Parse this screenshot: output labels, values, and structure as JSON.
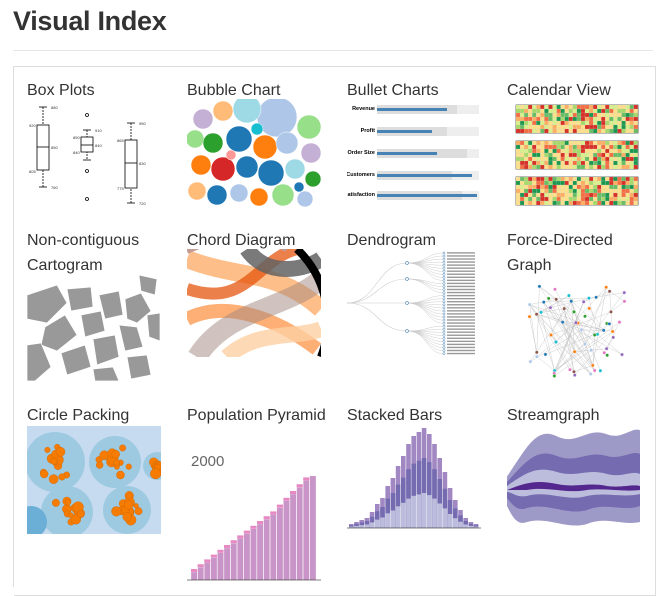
{
  "page": {
    "title": "Visual Index"
  },
  "grid": {
    "items": [
      {
        "title": "Box Plots"
      },
      {
        "title": "Bubble Chart"
      },
      {
        "title": "Bullet Charts"
      },
      {
        "title": "Calendar View"
      },
      {
        "title": "Non-contiguous Cartogram"
      },
      {
        "title": "Chord Diagram"
      },
      {
        "title": "Dendrogram"
      },
      {
        "title": "Force-Directed Graph"
      },
      {
        "title": "Circle Packing"
      },
      {
        "title": "Population Pyramid",
        "subtitle": "2000"
      },
      {
        "title": "Stacked Bars"
      },
      {
        "title": "Streamgraph"
      }
    ]
  },
  "colors": {
    "border": "#dcdcdc",
    "title_text": "#333333",
    "orange": "#ff7f0e",
    "blue": "#1f77b4",
    "purple": "#7b6aa6",
    "pink": "#e28cd6",
    "calendar_green": "#66bd63",
    "calendar_yellow": "#fee08b"
  }
}
